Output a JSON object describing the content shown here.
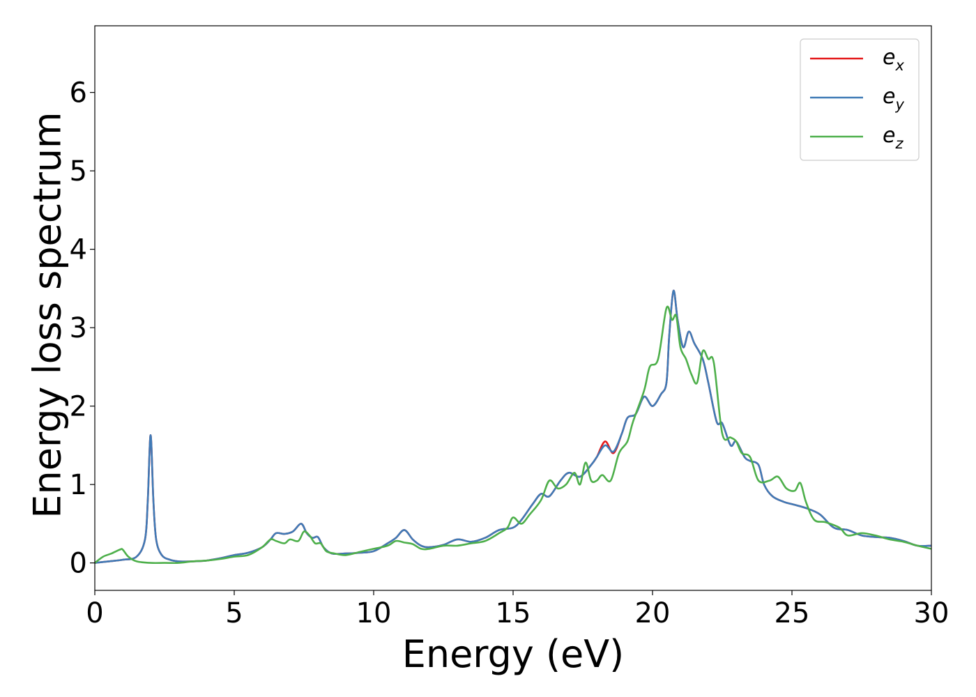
{
  "chart_data": {
    "type": "line",
    "xlabel": "Energy (eV)",
    "ylabel": "Energy loss spectrum",
    "xlim": [
      0,
      30
    ],
    "ylim": [
      -0.35,
      6.85
    ],
    "xticks": [
      "0",
      "5",
      "10",
      "15",
      "20",
      "25",
      "30"
    ],
    "yticks": [
      "0",
      "1",
      "2",
      "3",
      "4",
      "5",
      "6"
    ],
    "grid": false,
    "legend_position": "top-right",
    "series": [
      {
        "name": "e_x",
        "name_main": "e",
        "name_sub": "x",
        "color": "#e41a1c",
        "x": [
          0,
          0.5,
          1.0,
          1.5,
          1.8,
          1.9,
          2.0,
          2.1,
          2.2,
          2.4,
          2.7,
          3.0,
          3.5,
          4.0,
          4.5,
          5.0,
          5.5,
          6.0,
          6.3,
          6.5,
          6.8,
          7.1,
          7.4,
          7.6,
          7.8,
          8.0,
          8.2,
          8.5,
          9.0,
          9.5,
          10.0,
          10.5,
          10.8,
          11.1,
          11.4,
          11.7,
          12.0,
          12.5,
          13.0,
          13.5,
          14.0,
          14.5,
          15.0,
          15.3,
          15.7,
          16.0,
          16.3,
          16.7,
          17.0,
          17.4,
          17.8,
          18.0,
          18.3,
          18.6,
          18.9,
          19.1,
          19.4,
          19.7,
          20.0,
          20.3,
          20.5,
          20.6,
          20.75,
          20.9,
          21.1,
          21.3,
          21.5,
          21.8,
          22.0,
          22.3,
          22.5,
          22.8,
          23.0,
          23.3,
          23.5,
          23.8,
          24.0,
          24.3,
          24.7,
          25.0,
          25.5,
          26.0,
          26.5,
          27.0,
          27.5,
          28.0,
          28.5,
          29.0,
          29.5,
          30.0
        ],
        "y": [
          0.0,
          0.02,
          0.04,
          0.08,
          0.3,
          0.8,
          1.63,
          0.8,
          0.3,
          0.1,
          0.04,
          0.02,
          0.02,
          0.03,
          0.06,
          0.1,
          0.13,
          0.2,
          0.3,
          0.38,
          0.37,
          0.4,
          0.5,
          0.38,
          0.32,
          0.33,
          0.2,
          0.12,
          0.12,
          0.13,
          0.15,
          0.25,
          0.32,
          0.42,
          0.3,
          0.22,
          0.2,
          0.23,
          0.3,
          0.27,
          0.32,
          0.42,
          0.45,
          0.55,
          0.75,
          0.88,
          0.85,
          1.05,
          1.15,
          1.1,
          1.25,
          1.35,
          1.55,
          1.4,
          1.65,
          1.85,
          1.9,
          2.12,
          2.0,
          2.15,
          2.3,
          2.9,
          3.47,
          3.1,
          2.75,
          2.95,
          2.8,
          2.6,
          2.3,
          1.8,
          1.78,
          1.5,
          1.55,
          1.35,
          1.3,
          1.25,
          1.0,
          0.85,
          0.78,
          0.75,
          0.7,
          0.62,
          0.45,
          0.42,
          0.35,
          0.33,
          0.32,
          0.28,
          0.22,
          0.22
        ]
      },
      {
        "name": "e_y",
        "name_main": "e",
        "name_sub": "y",
        "color": "#3f7ab6",
        "x": [
          0,
          0.5,
          1.0,
          1.5,
          1.8,
          1.9,
          2.0,
          2.1,
          2.2,
          2.4,
          2.7,
          3.0,
          3.5,
          4.0,
          4.5,
          5.0,
          5.5,
          6.0,
          6.3,
          6.5,
          6.8,
          7.1,
          7.4,
          7.6,
          7.8,
          8.0,
          8.2,
          8.5,
          9.0,
          9.5,
          10.0,
          10.5,
          10.8,
          11.1,
          11.4,
          11.7,
          12.0,
          12.5,
          13.0,
          13.5,
          14.0,
          14.5,
          15.0,
          15.3,
          15.7,
          16.0,
          16.3,
          16.7,
          17.0,
          17.4,
          17.8,
          18.0,
          18.3,
          18.6,
          18.9,
          19.1,
          19.4,
          19.7,
          20.0,
          20.3,
          20.5,
          20.6,
          20.75,
          20.9,
          21.1,
          21.3,
          21.5,
          21.8,
          22.0,
          22.3,
          22.5,
          22.8,
          23.0,
          23.3,
          23.5,
          23.8,
          24.0,
          24.3,
          24.7,
          25.0,
          25.5,
          26.0,
          26.5,
          27.0,
          27.5,
          28.0,
          28.5,
          29.0,
          29.5,
          30.0
        ],
        "y": [
          0.0,
          0.02,
          0.04,
          0.08,
          0.3,
          0.8,
          1.63,
          0.8,
          0.3,
          0.1,
          0.04,
          0.02,
          0.02,
          0.03,
          0.06,
          0.1,
          0.13,
          0.2,
          0.3,
          0.38,
          0.37,
          0.4,
          0.5,
          0.38,
          0.32,
          0.33,
          0.2,
          0.12,
          0.12,
          0.13,
          0.15,
          0.25,
          0.32,
          0.42,
          0.3,
          0.22,
          0.2,
          0.23,
          0.3,
          0.27,
          0.32,
          0.42,
          0.45,
          0.55,
          0.75,
          0.88,
          0.85,
          1.05,
          1.15,
          1.1,
          1.25,
          1.35,
          1.5,
          1.42,
          1.65,
          1.85,
          1.9,
          2.12,
          2.0,
          2.15,
          2.3,
          2.9,
          3.47,
          3.1,
          2.75,
          2.95,
          2.8,
          2.6,
          2.3,
          1.8,
          1.78,
          1.5,
          1.55,
          1.35,
          1.3,
          1.25,
          1.0,
          0.85,
          0.78,
          0.75,
          0.7,
          0.62,
          0.45,
          0.42,
          0.35,
          0.33,
          0.32,
          0.28,
          0.22,
          0.22
        ]
      },
      {
        "name": "e_z",
        "name_main": "e",
        "name_sub": "z",
        "color": "#4daf4a",
        "x": [
          0,
          0.3,
          0.6,
          0.9,
          1.0,
          1.2,
          1.5,
          2.0,
          2.5,
          3.0,
          3.5,
          4.0,
          4.5,
          5.0,
          5.5,
          6.0,
          6.3,
          6.5,
          6.8,
          7.0,
          7.3,
          7.5,
          7.7,
          7.9,
          8.1,
          8.3,
          8.6,
          9.0,
          9.5,
          10.0,
          10.5,
          10.8,
          11.1,
          11.4,
          11.7,
          12.0,
          12.5,
          13.0,
          13.5,
          14.0,
          14.5,
          14.8,
          15.0,
          15.3,
          15.6,
          16.0,
          16.3,
          16.6,
          16.9,
          17.2,
          17.4,
          17.6,
          17.8,
          18.0,
          18.2,
          18.5,
          18.8,
          19.1,
          19.3,
          19.7,
          19.9,
          20.2,
          20.5,
          20.7,
          20.85,
          21.0,
          21.2,
          21.4,
          21.6,
          21.8,
          22.0,
          22.2,
          22.5,
          22.8,
          23.0,
          23.2,
          23.5,
          23.8,
          24.2,
          24.5,
          24.8,
          25.1,
          25.3,
          25.5,
          25.8,
          26.2,
          26.7,
          27.0,
          27.5,
          28.0,
          28.5,
          29.0,
          29.5,
          30.0
        ],
        "y": [
          0.0,
          0.08,
          0.12,
          0.17,
          0.17,
          0.08,
          0.02,
          0.0,
          0.0,
          0.0,
          0.02,
          0.03,
          0.05,
          0.08,
          0.1,
          0.2,
          0.3,
          0.28,
          0.25,
          0.3,
          0.28,
          0.4,
          0.35,
          0.25,
          0.25,
          0.15,
          0.12,
          0.1,
          0.14,
          0.18,
          0.22,
          0.28,
          0.26,
          0.24,
          0.18,
          0.18,
          0.22,
          0.22,
          0.25,
          0.28,
          0.38,
          0.45,
          0.58,
          0.5,
          0.62,
          0.8,
          1.05,
          0.95,
          1.0,
          1.15,
          1.0,
          1.28,
          1.05,
          1.05,
          1.12,
          1.05,
          1.4,
          1.55,
          1.8,
          2.2,
          2.5,
          2.6,
          3.25,
          3.1,
          3.15,
          2.75,
          2.6,
          2.4,
          2.3,
          2.7,
          2.6,
          2.55,
          1.65,
          1.6,
          1.55,
          1.4,
          1.35,
          1.05,
          1.05,
          1.1,
          0.95,
          0.92,
          1.02,
          0.78,
          0.55,
          0.52,
          0.45,
          0.35,
          0.38,
          0.35,
          0.3,
          0.27,
          0.22,
          0.18
        ]
      }
    ]
  }
}
